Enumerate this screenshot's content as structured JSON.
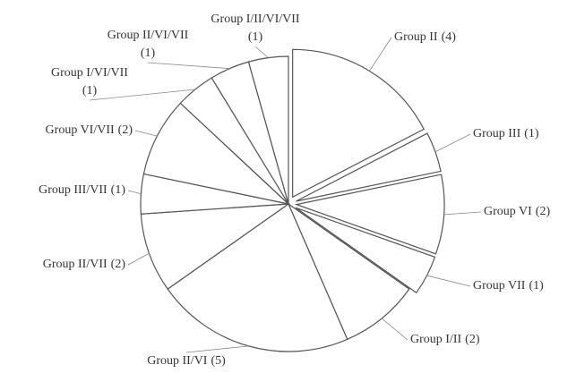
{
  "chart_data": {
    "type": "pie",
    "categories": [
      "Group II",
      "Group III",
      "Group VI",
      "Group VII",
      "Group I/II",
      "Group II/VI",
      "Group II/VII",
      "Group III/VII",
      "Group VI/VII",
      "Group I/VI/VII",
      "Group II/VI/VII",
      "Group I/II/VI/VII"
    ],
    "values": [
      4,
      1,
      2,
      1,
      2,
      5,
      2,
      1,
      2,
      1,
      1,
      1
    ],
    "value_labels": [
      "(4)",
      "(1)",
      "(2)",
      "(1)",
      "(2)",
      "(5)",
      "(2)",
      "(1)",
      "(2)",
      "(1)",
      "(1)",
      "(1)"
    ],
    "exploded": [
      true,
      true,
      true,
      true,
      false,
      false,
      false,
      false,
      false,
      false,
      false,
      false
    ],
    "color": "#ffffff"
  }
}
